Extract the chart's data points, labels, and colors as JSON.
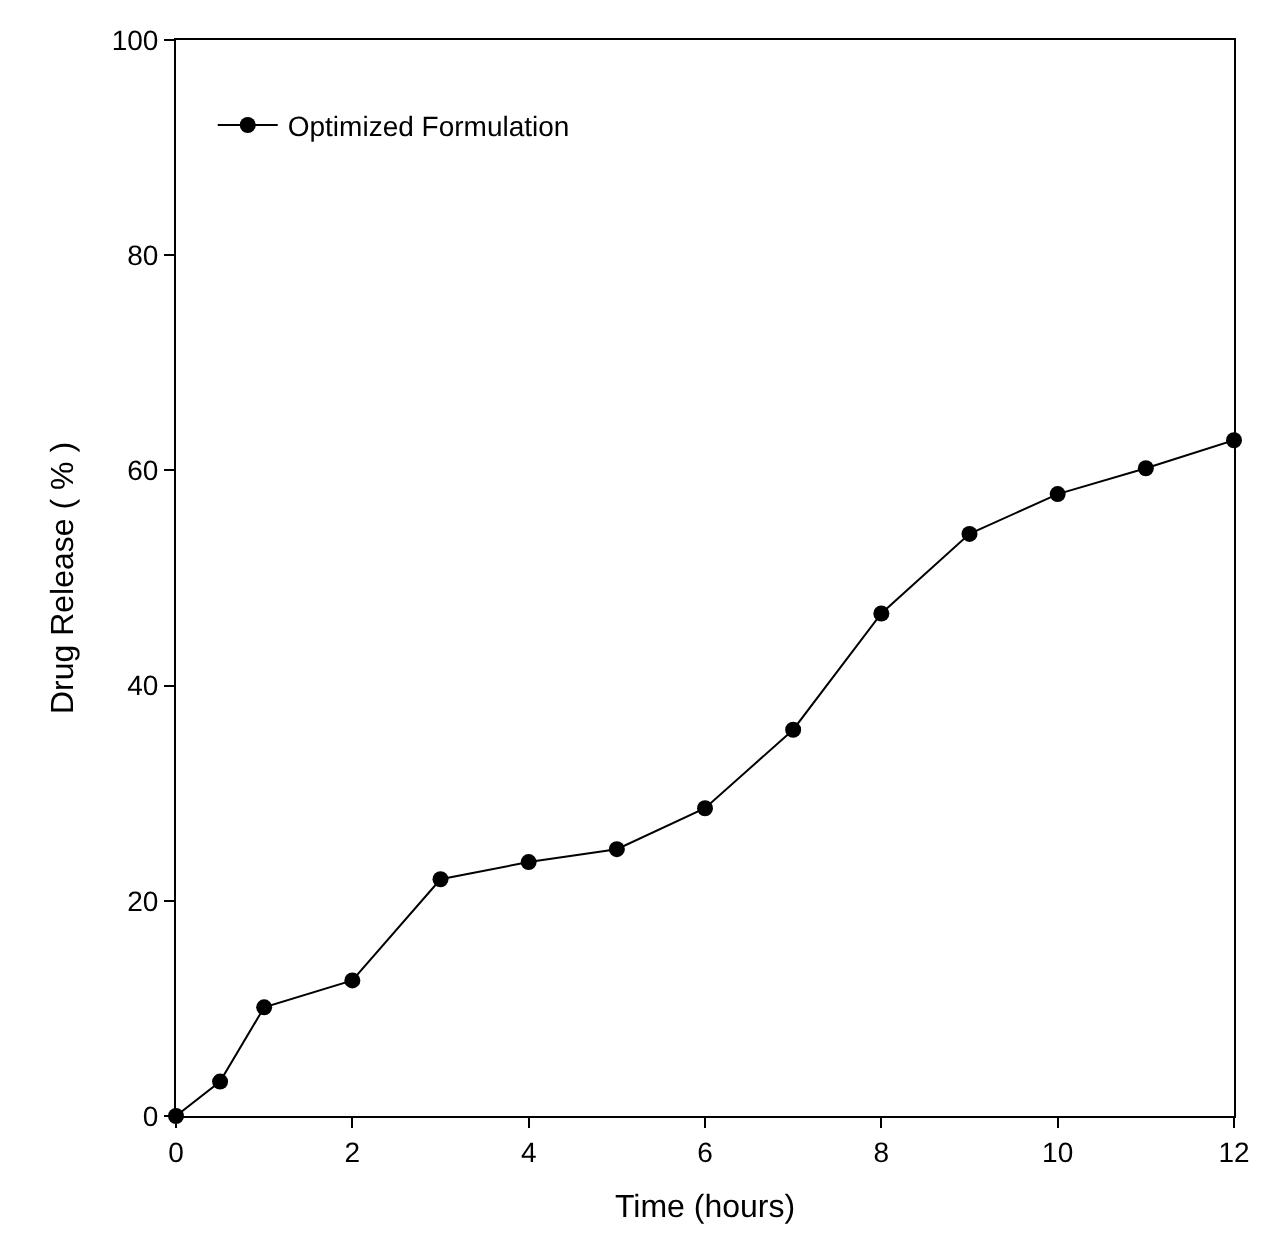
{
  "chart_data": {
    "type": "line",
    "xlabel": "Time (hours)",
    "ylabel": "Drug Release ( % )",
    "x": [
      0,
      0.5,
      1,
      2,
      3,
      4,
      5,
      6,
      7,
      8,
      9,
      10,
      11,
      12
    ],
    "series": [
      {
        "name": "Optimized Formulation",
        "color": "#000000",
        "values": [
          0,
          3.2,
          10.1,
          12.6,
          22.0,
          23.6,
          24.8,
          28.6,
          35.9,
          46.7,
          54.1,
          57.8,
          60.2,
          62.8
        ]
      }
    ],
    "xlim": [
      0,
      12
    ],
    "xticks": [
      0,
      2,
      4,
      6,
      8,
      10,
      12
    ],
    "ylim": [
      0,
      100
    ],
    "yticks": [
      0,
      20,
      40,
      60,
      80,
      100
    ],
    "grid": false,
    "legend": "top left",
    "marker": "circle",
    "line_style": "solid"
  }
}
